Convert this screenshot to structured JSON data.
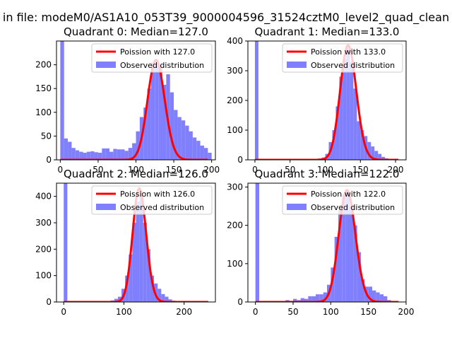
{
  "figure": {
    "suptitle": "in file: modeM0/AS1A10_053T39_9000004596_31524cztM0_level2_quad_clean"
  },
  "colors": {
    "hist_fill": "#8080ff",
    "poisson_line": "#ff0000",
    "axis": "#000000"
  },
  "chart_data": [
    {
      "type": "bar",
      "title": "Quadrant 0: Median=127.0",
      "xlim": [
        -5,
        205
      ],
      "ylim": [
        0,
        250
      ],
      "xticks": [
        0,
        50,
        100,
        150,
        200
      ],
      "yticks": [
        0,
        50,
        100,
        150,
        200
      ],
      "bin_width": 5,
      "hist_x": [
        0,
        5,
        10,
        15,
        20,
        25,
        30,
        35,
        40,
        45,
        50,
        55,
        60,
        65,
        70,
        75,
        80,
        85,
        90,
        95,
        100,
        105,
        110,
        115,
        120,
        125,
        130,
        135,
        140,
        145,
        150,
        155,
        160,
        165,
        170,
        175,
        180,
        185,
        190,
        195
      ],
      "hist_y": [
        250,
        45,
        38,
        25,
        20,
        17,
        15,
        17,
        18,
        16,
        15,
        24,
        24,
        17,
        23,
        22,
        22,
        19,
        25,
        35,
        60,
        90,
        110,
        150,
        205,
        210,
        200,
        158,
        180,
        142,
        105,
        90,
        83,
        72,
        60,
        47,
        40,
        30,
        25,
        15
      ],
      "poisson_mean": 127.0,
      "poisson_peak": 210,
      "legend": [
        "Poission with 127.0",
        "Observed distribution"
      ]
    },
    {
      "type": "bar",
      "title": "Quadrant 1: Median=133.0",
      "xlim": [
        -10,
        215
      ],
      "ylim": [
        0,
        400
      ],
      "xticks": [
        0,
        50,
        100,
        150,
        200
      ],
      "yticks": [
        0,
        100,
        200,
        300,
        400
      ],
      "bin_width": 5,
      "hist_x": [
        0,
        5,
        10,
        15,
        20,
        25,
        30,
        35,
        40,
        45,
        50,
        55,
        60,
        65,
        70,
        75,
        80,
        85,
        90,
        95,
        100,
        105,
        110,
        115,
        120,
        125,
        130,
        135,
        140,
        145,
        150,
        155,
        160,
        165,
        170,
        175,
        180,
        185,
        190,
        195,
        200
      ],
      "hist_y": [
        400,
        0,
        0,
        0,
        0,
        0,
        0,
        0,
        0,
        0,
        0,
        0,
        0,
        0,
        0,
        3,
        0,
        0,
        5,
        8,
        20,
        60,
        100,
        180,
        280,
        340,
        380,
        330,
        240,
        130,
        100,
        80,
        60,
        45,
        30,
        20,
        10,
        5,
        2,
        1,
        0
      ],
      "poisson_mean": 133.0,
      "poisson_peak": 385,
      "legend": [
        "Poission with 133.0",
        "Observed distribution"
      ]
    },
    {
      "type": "bar",
      "title": "Quadrant 2: Median=126.0",
      "xlim": [
        -12,
        252
      ],
      "ylim": [
        0,
        450
      ],
      "xticks": [
        0,
        100,
        200
      ],
      "yticks": [
        0,
        100,
        200,
        300,
        400
      ],
      "bin_width": 6,
      "hist_x": [
        0,
        72,
        78,
        84,
        90,
        96,
        102,
        108,
        114,
        120,
        126,
        132,
        138,
        144,
        150,
        156,
        162,
        168,
        174,
        180,
        186,
        192,
        198,
        204,
        210,
        216,
        222,
        228
      ],
      "hist_y": [
        450,
        3,
        6,
        12,
        20,
        50,
        100,
        180,
        300,
        380,
        400,
        300,
        200,
        100,
        70,
        50,
        30,
        20,
        10,
        5,
        3,
        2,
        1,
        1,
        0,
        0,
        0,
        0
      ],
      "poisson_mean": 126.0,
      "poisson_peak": 430,
      "legend": [
        "Poission with 126.0",
        "Observed distribution"
      ]
    },
    {
      "type": "bar",
      "title": "Quadrant 3: Median=122.0",
      "xlim": [
        -10,
        200
      ],
      "ylim": [
        0,
        310
      ],
      "xticks": [
        0,
        50,
        100,
        150,
        200
      ],
      "yticks": [
        0,
        100,
        200,
        300
      ],
      "bin_width": 5,
      "hist_x": [
        0,
        40,
        45,
        50,
        55,
        60,
        65,
        70,
        75,
        80,
        85,
        90,
        95,
        100,
        105,
        110,
        115,
        120,
        125,
        130,
        135,
        140,
        145,
        150,
        155,
        160,
        165,
        170,
        175,
        180
      ],
      "hist_y": [
        310,
        5,
        3,
        8,
        5,
        10,
        8,
        15,
        15,
        20,
        20,
        25,
        45,
        90,
        170,
        240,
        280,
        290,
        250,
        200,
        130,
        60,
        40,
        40,
        30,
        25,
        20,
        15,
        5,
        2
      ],
      "poisson_mean": 122.0,
      "poisson_peak": 292,
      "legend": [
        "Poission with 122.0",
        "Observed distribution"
      ]
    }
  ]
}
